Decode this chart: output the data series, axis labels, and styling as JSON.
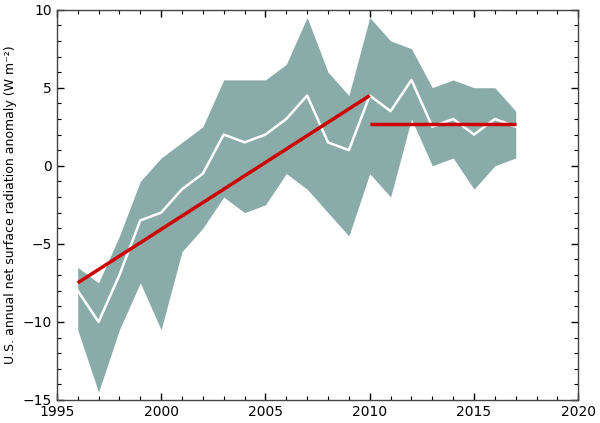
{
  "years": [
    1996,
    1997,
    1998,
    1999,
    2000,
    2001,
    2002,
    2003,
    2004,
    2005,
    2006,
    2007,
    2008,
    2009,
    2010,
    2011,
    2012,
    2013,
    2014,
    2015,
    2016,
    2017
  ],
  "values": [
    -8.0,
    -10.0,
    -7.0,
    -3.5,
    -3.0,
    -1.5,
    -0.5,
    2.0,
    1.5,
    2.0,
    3.0,
    4.5,
    1.5,
    1.0,
    4.5,
    3.5,
    5.5,
    2.5,
    3.0,
    2.0,
    3.0,
    2.5
  ],
  "upper": [
    -6.5,
    -7.5,
    -4.5,
    -1.0,
    0.5,
    1.5,
    2.5,
    5.5,
    5.5,
    5.5,
    6.5,
    9.5,
    6.0,
    4.5,
    9.5,
    8.0,
    7.5,
    5.0,
    5.5,
    5.0,
    5.0,
    3.5
  ],
  "lower": [
    -10.5,
    -14.5,
    -10.5,
    -7.5,
    -10.5,
    -5.5,
    -4.0,
    -2.0,
    -3.0,
    -2.5,
    -0.5,
    -1.5,
    -3.0,
    -4.5,
    -0.5,
    -2.0,
    3.0,
    0.0,
    0.5,
    -1.5,
    0.0,
    0.5
  ],
  "trend1_x": [
    1996,
    2010
  ],
  "trend1_y": [
    -7.5,
    4.5
  ],
  "trend2_x": [
    2010,
    2017
  ],
  "trend2_y": [
    2.7,
    2.7
  ],
  "shade_color": "#8aaca8",
  "line_color": "#ffffff",
  "trend_color": "#cc0000",
  "ylabel": "U.S. annual net surface radiation anomaly (W m⁻²)",
  "xlim": [
    1995,
    2020
  ],
  "ylim": [
    -15,
    10
  ],
  "yticks": [
    -15,
    -10,
    -5,
    0,
    5,
    10
  ],
  "xticks": [
    1995,
    2000,
    2005,
    2010,
    2015,
    2020
  ],
  "background_color": "#ffffff"
}
